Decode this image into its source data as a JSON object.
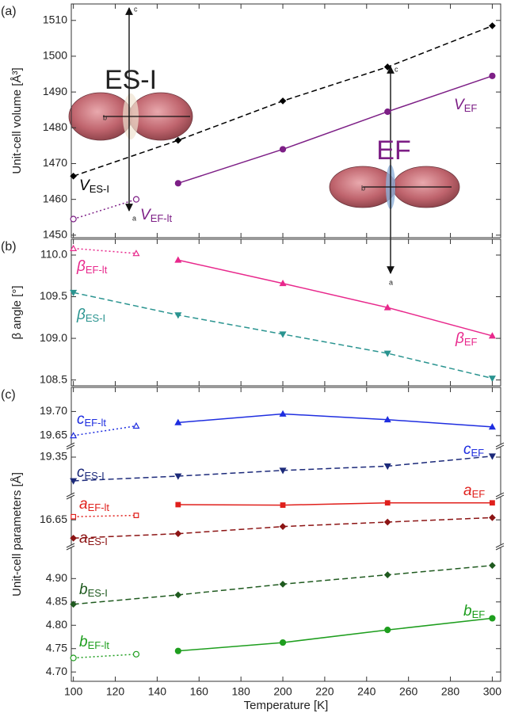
{
  "chart_data": [
    {
      "type": "line",
      "panel_label": "(a)",
      "ylabel": "Unit-cell volume [Å³]",
      "xlim": [
        99,
        304
      ],
      "ylim": [
        1449.3,
        1514.6
      ],
      "yticks": [
        1450,
        1460,
        1470,
        1480,
        1490,
        1500,
        1510
      ],
      "series": [
        {
          "label": "V",
          "subscript": "ES-I",
          "color": "#000000",
          "dash": "dashed",
          "marker": "diamond",
          "open": false,
          "x": [
            100,
            150,
            200,
            250,
            300
          ],
          "values": [
            1466.5,
            1476.5,
            1487.5,
            1497,
            1508.5
          ]
        },
        {
          "label": "V",
          "subscript": "EF-lt",
          "color": "#7d1f86",
          "dash": "dotted",
          "marker": "circle",
          "open": true,
          "x": [
            100,
            130
          ],
          "values": [
            1454.5,
            1460
          ]
        },
        {
          "label": "V",
          "subscript": "EF",
          "color": "#7d1f86",
          "dash": "solid",
          "marker": "circle",
          "open": false,
          "x": [
            150,
            200,
            250,
            300
          ],
          "values": [
            1464.5,
            1474,
            1484.5,
            1494.5
          ]
        }
      ],
      "insets": [
        {
          "title": "ES-I",
          "axis_letters": [
            "c",
            "b",
            "a"
          ]
        },
        {
          "title": "EF",
          "axis_letters": [
            "c",
            "b",
            "a"
          ]
        }
      ]
    },
    {
      "type": "line",
      "panel_label": "(b)",
      "ylabel": "β angle [°]",
      "xlim": [
        99,
        304
      ],
      "ylim": [
        108.43,
        110.19
      ],
      "yticks": [
        108.5,
        {
          "value": 109,
          "label": "109.0"
        },
        109.5,
        {
          "value": 110,
          "label": "110.0"
        }
      ],
      "series": [
        {
          "label": "β",
          "subscript": "EF-lt",
          "color": "#e8288c",
          "dash": "dotted",
          "marker": "triangle",
          "open": true,
          "x": [
            100,
            130
          ],
          "values": [
            110.08,
            110.02
          ]
        },
        {
          "label": "β",
          "subscript": "EF",
          "color": "#e8288c",
          "dash": "solid",
          "marker": "triangle",
          "open": false,
          "x": [
            150,
            200,
            250,
            300
          ],
          "values": [
            109.94,
            109.66,
            109.37,
            109.03
          ]
        },
        {
          "label": "β",
          "subscript": "ES-I",
          "color": "#2a9490",
          "dash": "dashed",
          "marker": "triangle-down",
          "open": false,
          "x": [
            100,
            150,
            200,
            250,
            300
          ],
          "values": [
            109.55,
            109.28,
            109.05,
            108.82,
            108.52
          ]
        }
      ]
    },
    {
      "type": "line",
      "panel_label": "(c)",
      "ylabel": "Unit-cell parameters [Å]",
      "xlabel": "Temperature [K]",
      "xlim": [
        99,
        304
      ],
      "xticks": [
        100,
        120,
        140,
        160,
        180,
        200,
        220,
        240,
        260,
        280,
        300
      ],
      "panels": [
        {
          "ylim": [
            19.63,
            19.75
          ],
          "yticks": [
            19.65,
            {
              "value": 19.7,
              "label": "19.70"
            }
          ],
          "series": [
            {
              "label": "c",
              "subscript": "EF-lt",
              "color": "#1f2ee0",
              "dash": "dotted",
              "marker": "triangle",
              "open": true,
              "x": [
                100,
                130
              ],
              "values": [
                19.65,
                19.67
              ]
            },
            {
              "label": "c",
              "subscript": "EF",
              "color": "#1f2ee0",
              "dash": "solid",
              "marker": "triangle",
              "open": false,
              "x": [
                150,
                200,
                250,
                300
              ],
              "values": [
                19.677,
                19.695,
                19.683,
                19.668
              ]
            }
          ]
        },
        {
          "ylim": [
            19.27,
            19.37
          ],
          "yticks": [
            19.35
          ],
          "series": [
            {
              "label": "c",
              "subscript": "ES-I",
              "color": "#1c2a7a",
              "dash": "dashed",
              "marker": "triangle-down",
              "open": false,
              "x": [
                100,
                150,
                200,
                250,
                300
              ],
              "values": [
                19.3,
                19.31,
                19.322,
                19.331,
                19.352
              ]
            }
          ]
        },
        {
          "ylim": [
            16.59,
            16.7
          ],
          "yticks": [
            16.65
          ],
          "series": [
            {
              "label": "a",
              "subscript": "EF-lt",
              "color": "#e0201c",
              "dash": "dotted",
              "marker": "square",
              "open": true,
              "x": [
                100,
                130
              ],
              "values": [
                16.657,
                16.66
              ]
            },
            {
              "label": "a",
              "subscript": "EF",
              "color": "#e0201c",
              "dash": "solid",
              "marker": "square",
              "open": false,
              "x": [
                150,
                200,
                250,
                300
              ],
              "values": [
                16.684,
                16.683,
                16.688,
                16.688
              ]
            },
            {
              "label": "a",
              "subscript": "ES-I",
              "color": "#8c1414",
              "dash": "dashed",
              "marker": "diamond",
              "open": false,
              "x": [
                100,
                150,
                200,
                250,
                300
              ],
              "values": [
                16.609,
                16.619,
                16.635,
                16.645,
                16.655
              ]
            }
          ]
        },
        {
          "ylim": [
            4.68,
            4.965
          ],
          "yticks": [
            {
              "value": 4.7,
              "label": "4.70"
            },
            4.75,
            {
              "value": 4.8,
              "label": "4.80"
            },
            4.85,
            {
              "value": 4.9,
              "label": "4.90"
            }
          ],
          "series": [
            {
              "label": "b",
              "subscript": "ES-I",
              "color": "#1f5a1f",
              "dash": "dashed",
              "marker": "diamond",
              "open": false,
              "x": [
                100,
                150,
                200,
                250,
                300
              ],
              "values": [
                4.845,
                4.865,
                4.888,
                4.908,
                4.928
              ]
            },
            {
              "label": "b",
              "subscript": "EF-lt",
              "color": "#1e9e1e",
              "dash": "dotted",
              "marker": "circle",
              "open": true,
              "x": [
                100,
                130
              ],
              "values": [
                4.73,
                4.738
              ]
            },
            {
              "label": "b",
              "subscript": "EF",
              "color": "#1e9e1e",
              "dash": "solid",
              "marker": "circle",
              "open": false,
              "x": [
                150,
                200,
                250,
                300
              ],
              "values": [
                4.745,
                4.763,
                4.79,
                4.815
              ]
            }
          ]
        }
      ]
    }
  ]
}
